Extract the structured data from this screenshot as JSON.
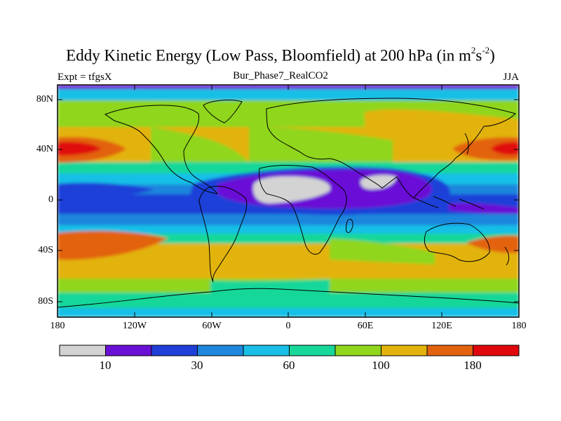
{
  "figure": {
    "title": "Eddy Kinetic Energy (Low Pass, Bloomfield) at 200 hPa (in m",
    "title_sup1": "2",
    "title_mid": "s",
    "title_sup2": "-2",
    "title_end": ")",
    "subtitle": "Bur_Phase7_RealCO2",
    "left_string": "Expt = tfgsX",
    "right_string": "JJA"
  },
  "axes": {
    "lat_labels": [
      "80N",
      "40N",
      "0",
      "40S",
      "80S"
    ],
    "lon_labels": [
      "180",
      "120W",
      "60W",
      "0",
      "60E",
      "120E",
      "180"
    ]
  },
  "colorbar": {
    "colors": [
      "#d3d3d3",
      "#6a0fd6",
      "#1f3fd8",
      "#1e86dc",
      "#19bfe6",
      "#18d79a",
      "#8fd61c",
      "#e3b30b",
      "#e2620e",
      "#e0080d"
    ],
    "labels": [
      "10",
      "30",
      "60",
      "100",
      "180"
    ]
  }
}
